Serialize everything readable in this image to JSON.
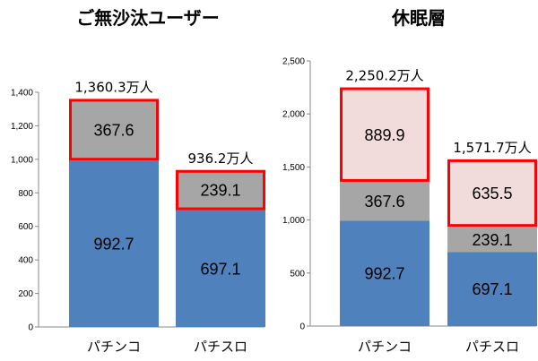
{
  "chart_data": [
    {
      "type": "bar",
      "stacked": true,
      "title": "ご無沙汰ユーザー",
      "categories": [
        "パチンコ",
        "パチスロ"
      ],
      "ylim": [
        0,
        1400
      ],
      "yticks": [
        "0",
        "200",
        "400",
        "600",
        "800",
        "1,000",
        "1,200",
        "1,400"
      ],
      "ytick_values": [
        0,
        200,
        400,
        600,
        800,
        1000,
        1200,
        1400
      ],
      "grid": false,
      "series": [
        {
          "values": [
            992.7,
            697.1
          ],
          "labels": [
            "992.7",
            "697.1"
          ],
          "color": "#4f81bd",
          "highlight": false
        },
        {
          "values": [
            367.6,
            239.1
          ],
          "labels": [
            "367.6",
            "239.1"
          ],
          "color": "#a6a6a6",
          "highlight": true
        }
      ],
      "totals": [
        "1,360.3万人",
        "936.2万人"
      ],
      "highlight_border": "#ff0000"
    },
    {
      "type": "bar",
      "stacked": true,
      "title": "休眠層",
      "categories": [
        "パチンコ",
        "パチスロ"
      ],
      "ylim": [
        0,
        2500
      ],
      "yticks": [
        "0",
        "500",
        "1,000",
        "1,500",
        "2,000",
        "2,500"
      ],
      "ytick_values": [
        0,
        500,
        1000,
        1500,
        2000,
        2500
      ],
      "grid": false,
      "series": [
        {
          "values": [
            992.7,
            697.1
          ],
          "labels": [
            "992.7",
            "697.1"
          ],
          "color": "#4f81bd",
          "highlight": false
        },
        {
          "values": [
            367.6,
            239.1
          ],
          "labels": [
            "367.6",
            "239.1"
          ],
          "color": "#a6a6a6",
          "highlight": false
        },
        {
          "values": [
            889.9,
            635.5
          ],
          "labels": [
            "889.9",
            "635.5"
          ],
          "color": "#f2dcdb",
          "highlight": true
        }
      ],
      "totals": [
        "2,250.2万人",
        "1,571.7万人"
      ],
      "highlight_border": "#ff0000"
    }
  ]
}
